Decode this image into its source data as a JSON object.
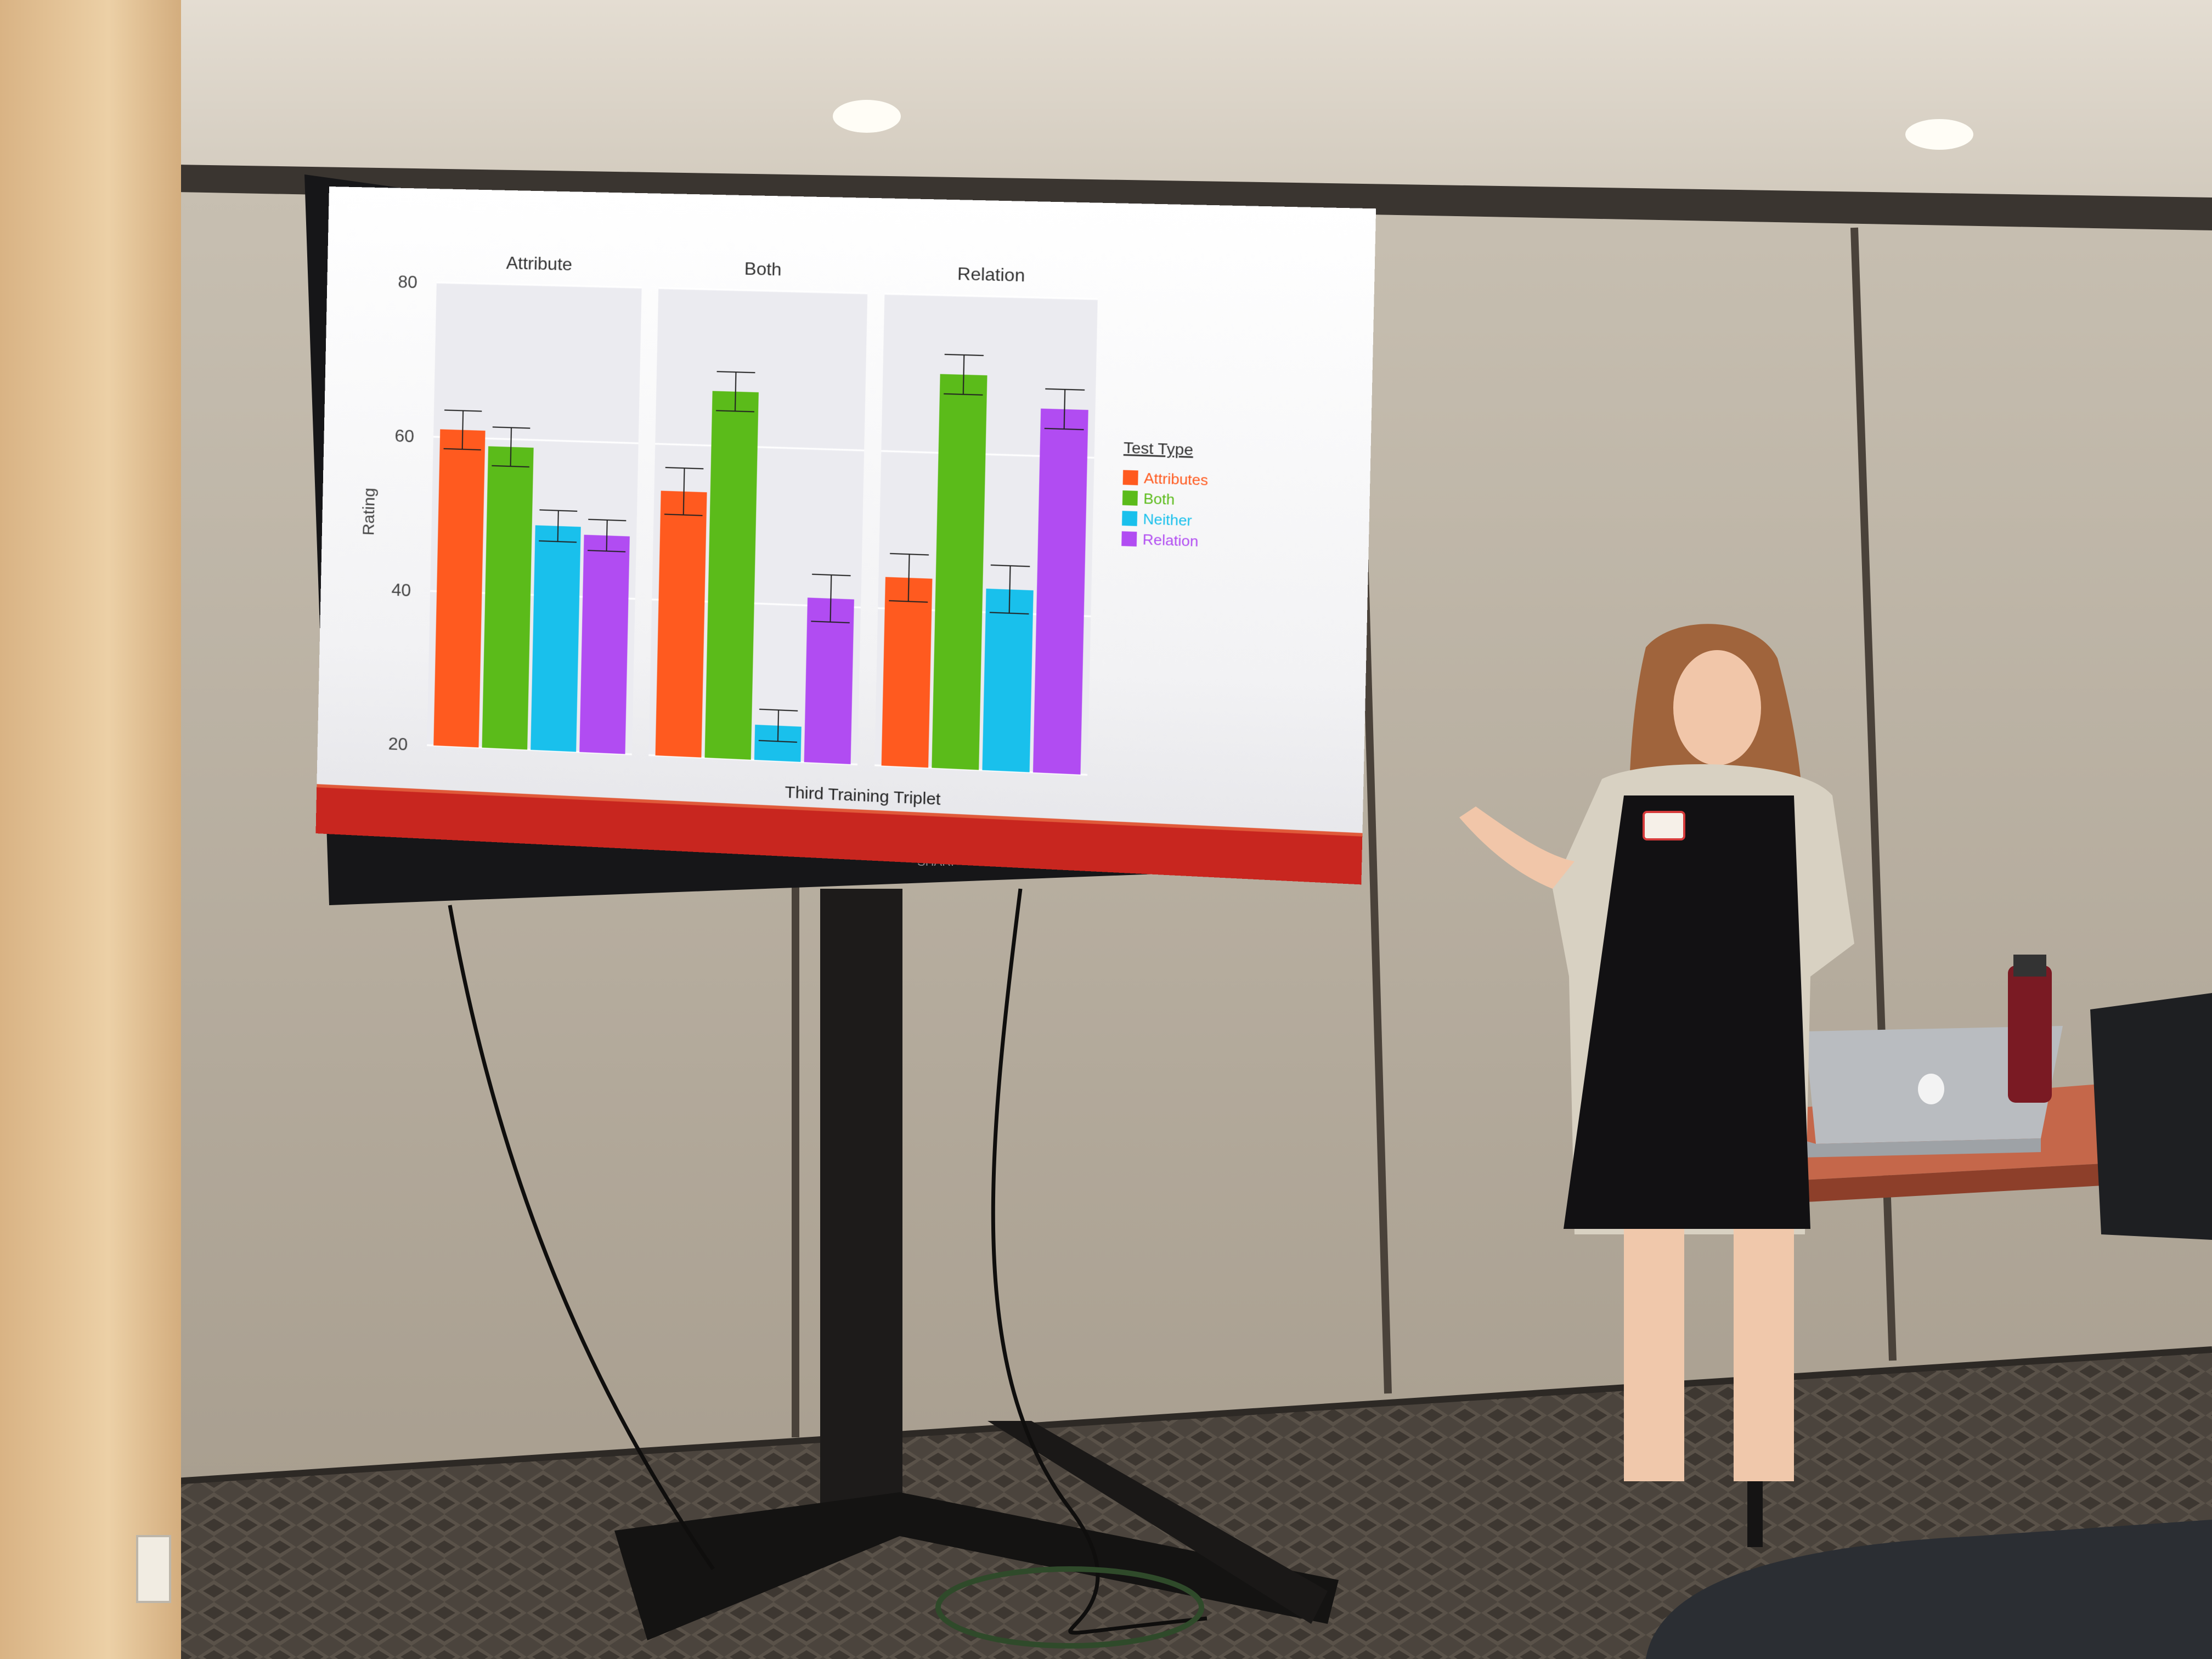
{
  "scene": {
    "description_colors": {
      "wall": "#b9b0a1",
      "ceiling": "#ddd6cc",
      "pillar": "#e1bf8e",
      "carpet": "#4a433c",
      "screen_bezel": "#161618",
      "slide_footer": "#c8261f"
    },
    "monitor_brand": "SHARP"
  },
  "chart_data": {
    "type": "bar",
    "facets": [
      "Attribute",
      "Both",
      "Relation"
    ],
    "series": [
      {
        "name": "Attributes",
        "color": "#ff5a1f",
        "values": [
          61,
          54,
          44
        ],
        "errors": [
          2.5,
          3,
          3
        ]
      },
      {
        "name": "Both",
        "color": "#5bbb1a",
        "values": [
          59,
          67,
          70
        ],
        "errors": [
          2.5,
          2.5,
          2.5
        ]
      },
      {
        "name": "Neither",
        "color": "#19c0ec",
        "values": [
          49,
          24.5,
          43
        ],
        "errors": [
          2,
          2,
          3
        ]
      },
      {
        "name": "Relation",
        "color": "#b14cf2",
        "values": [
          48,
          41,
          66
        ],
        "errors": [
          2,
          3,
          2.5
        ]
      }
    ],
    "ylabel": "Rating",
    "xlabel": "Third Training Triplet",
    "yticks": [
      20,
      40,
      60,
      80
    ],
    "ylim": [
      20,
      80
    ],
    "legend_title": "Test Type",
    "legend_position": "right",
    "grid": true
  }
}
